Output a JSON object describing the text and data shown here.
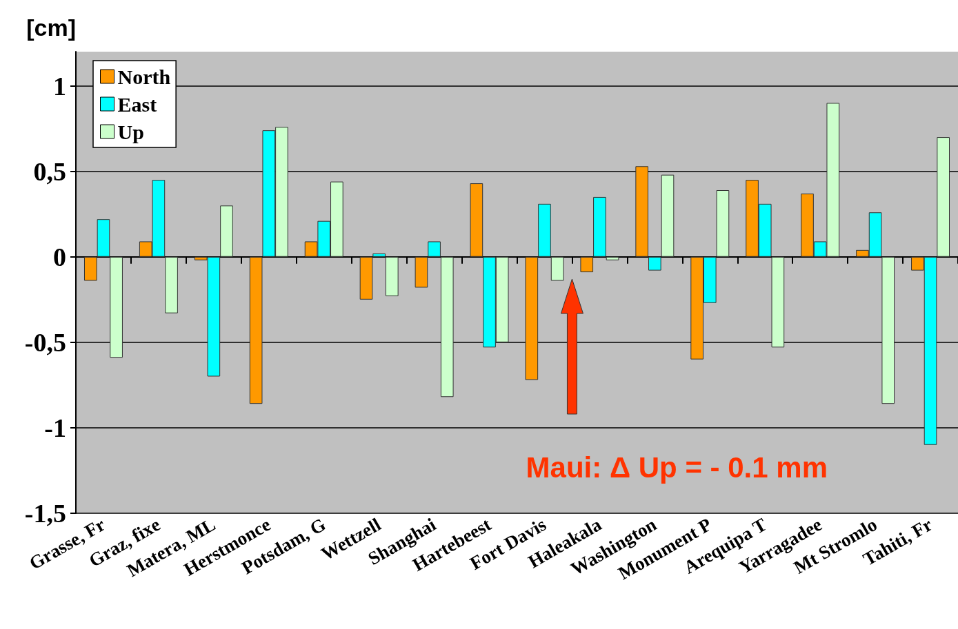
{
  "chart_data": {
    "type": "bar",
    "ylabel": "[cm]",
    "categories": [
      "Grasse, Fr",
      "Graz, fixe",
      "Matera, ML",
      "Herstmonce",
      "Potsdam, G",
      "Wettzell",
      "Shanghai",
      "Hartebeest",
      "Fort Davis",
      "Haleakala",
      "Washington",
      "Monument P",
      "Arequipa T",
      "Yarragadee",
      "Mt Stromlo",
      "Tahiti, Fr"
    ],
    "series": [
      {
        "name": "North",
        "color": "#ff9900",
        "values": [
          -0.14,
          0.09,
          -0.02,
          -0.86,
          0.09,
          -0.25,
          -0.18,
          0.43,
          -0.72,
          -0.09,
          0.53,
          -0.6,
          0.45,
          0.37,
          0.04,
          -0.08
        ]
      },
      {
        "name": "East",
        "color": "#00ffff",
        "values": [
          0.22,
          0.45,
          -0.7,
          0.74,
          0.21,
          0.02,
          0.09,
          -0.53,
          0.31,
          0.35,
          -0.08,
          -0.27,
          0.31,
          0.09,
          0.26,
          -1.1
        ]
      },
      {
        "name": "Up",
        "color": "#ccffcc",
        "values": [
          -0.59,
          -0.33,
          0.3,
          0.76,
          0.44,
          -0.23,
          -0.82,
          -0.5,
          -0.14,
          -0.02,
          0.48,
          0.39,
          -0.53,
          0.9,
          -0.86,
          0.7
        ]
      }
    ],
    "ylim": [
      -1.5,
      1.2
    ],
    "yticks": [
      {
        "value": -1.5,
        "label": "-1,5"
      },
      {
        "value": -1,
        "label": "-1"
      },
      {
        "value": -0.5,
        "label": "-0,5"
      },
      {
        "value": 0,
        "label": "0"
      },
      {
        "value": 0.5,
        "label": "0,5"
      },
      {
        "value": 1,
        "label": "1"
      }
    ],
    "grid": "y",
    "legend": "top left",
    "annotations": [
      "Maui: Δ Up = - 0.1 mm"
    ]
  }
}
